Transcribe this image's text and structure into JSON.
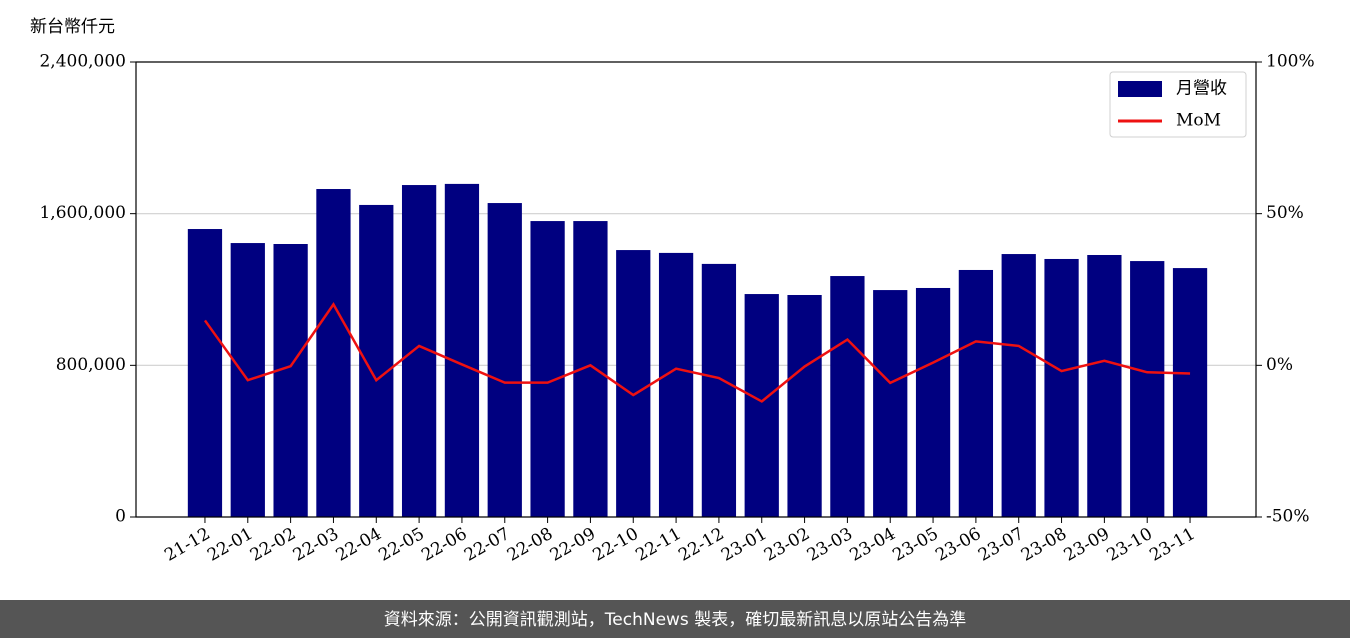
{
  "chart_data": {
    "type": "bar",
    "y_label": "新台幣仟元",
    "footer": "資料來源：公開資訊觀測站，TechNews 製表，確切最新訊息以原站公告為準",
    "categories": [
      "21-12",
      "22-01",
      "22-02",
      "22-03",
      "22-04",
      "22-05",
      "22-06",
      "22-07",
      "22-08",
      "22-09",
      "22-10",
      "22-11",
      "22-12",
      "23-01",
      "23-02",
      "23-03",
      "23-04",
      "23-05",
      "23-06",
      "23-07",
      "23-08",
      "23-09",
      "23-10",
      "23-11"
    ],
    "series": [
      {
        "name": "月營收",
        "type": "bar",
        "color": "#000080",
        "axis": "y",
        "values": [
          1519000,
          1445000,
          1440000,
          1730000,
          1646000,
          1751000,
          1757000,
          1656000,
          1561000,
          1561000,
          1408000,
          1393000,
          1335000,
          1176000,
          1171000,
          1271000,
          1197000,
          1208000,
          1303000,
          1387000,
          1361000,
          1382000,
          1350000,
          1313000
        ]
      },
      {
        "name": "MoM",
        "type": "line",
        "color": "#ee1111",
        "axis": "y2",
        "values": [
          14.8,
          -4.9,
          -0.3,
          20.1,
          -4.9,
          6.4,
          0.3,
          -5.7,
          -5.7,
          0,
          -9.8,
          -1.1,
          -4.2,
          -11.9,
          -0.4,
          8.5,
          -5.8,
          0.9,
          7.9,
          6.4,
          -1.9,
          1.5,
          -2.3,
          -2.7
        ]
      }
    ],
    "ylim": [
      0,
      2400000
    ],
    "yticks": [
      0,
      {
        "value": 800000,
        "label": "800,000"
      },
      {
        "value": 1600000,
        "label": "1,600,000"
      },
      {
        "value": 2400000,
        "label": "2,400,000"
      }
    ],
    "y2lim": [
      -50,
      100
    ],
    "y2ticks": [
      {
        "value": -50,
        "label": "-50%"
      },
      {
        "value": 0,
        "label": "0%"
      },
      {
        "value": 50,
        "label": "50%"
      },
      {
        "value": 100,
        "label": "100%"
      }
    ],
    "grid": true,
    "legend": "upper right"
  }
}
